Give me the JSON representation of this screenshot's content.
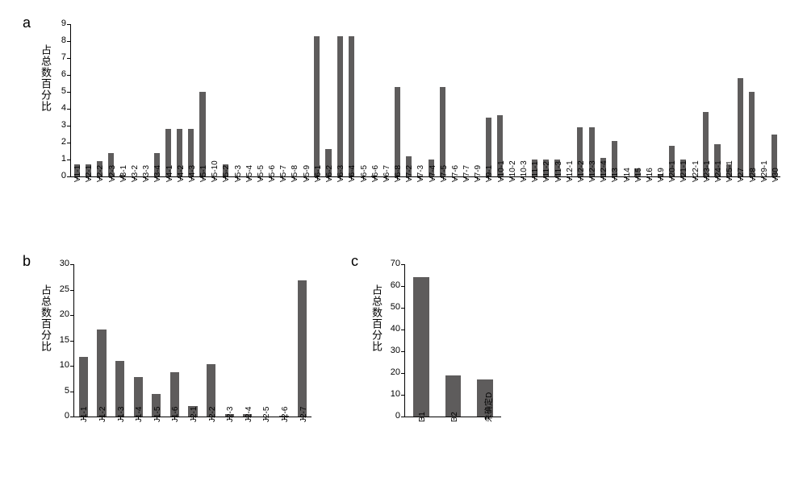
{
  "bar_color": "#5e5c5c",
  "background_color": "#ffffff",
  "axis_color": "#000000",
  "panel_a": {
    "label": "a",
    "y_axis_label": "占总数百分比",
    "label_fontsize": 18,
    "axis_label_fontsize": 13,
    "tick_fontsize": 11,
    "xtick_fontsize": 10,
    "ylim": [
      0,
      9
    ],
    "ytick_step": 1,
    "bar_width_ratio": 0.5,
    "categories": [
      "V1-1",
      "V2-1",
      "V2-2",
      "V2-3",
      "V3-1",
      "V3-2",
      "V3-3",
      "V3-4",
      "V4-1",
      "V4-2",
      "V4-3",
      "V5-1",
      "V5-10",
      "V5-2",
      "V5-3",
      "V5-4",
      "V5-5",
      "V5-6",
      "V5-7",
      "V5-8",
      "V5-9",
      "V6-1",
      "V6-2",
      "V6-3",
      "V6-4",
      "V6-5",
      "V6-6",
      "V6-7",
      "V6-8",
      "V7-2",
      "V7-3",
      "V7-4",
      "V7-5",
      "V7-6",
      "V7-7",
      "V7-9",
      "V9-1",
      "V10-1",
      "V10-2",
      "V10-3",
      "V11-1",
      "V11-2",
      "V11-3",
      "V12-1",
      "V12-2",
      "V12-3",
      "V12-4",
      "V13",
      "V14",
      "V15",
      "V16",
      "V19",
      "V20-1",
      "V21-1",
      "V22-1",
      "V23-1",
      "V24-1",
      "V25-1",
      "V27",
      "V28",
      "V29-1",
      "V30"
    ],
    "values": [
      0.7,
      0.7,
      0.9,
      1.4,
      0.1,
      0,
      0,
      1.4,
      2.8,
      2.8,
      2.8,
      5.0,
      0,
      0.7,
      0,
      0,
      0,
      0,
      0,
      0,
      0,
      8.3,
      1.6,
      8.3,
      8.3,
      0,
      0.05,
      0,
      5.3,
      1.2,
      0.05,
      1.0,
      5.3,
      0,
      0,
      0,
      3.5,
      3.6,
      0,
      0,
      1.0,
      1.0,
      1.0,
      0,
      2.9,
      2.9,
      1.1,
      2.1,
      0,
      0.5,
      0,
      0.1,
      1.8,
      1.0,
      0,
      3.8,
      1.9,
      0.7,
      5.8,
      5.0,
      0,
      2.5
    ]
  },
  "panel_b": {
    "label": "b",
    "y_axis_label": "占总数百分比",
    "label_fontsize": 18,
    "axis_label_fontsize": 13,
    "tick_fontsize": 11,
    "xtick_fontsize": 10,
    "ylim": [
      0,
      30
    ],
    "ytick_step": 5,
    "bar_width_ratio": 0.5,
    "categories": [
      "J1-1",
      "J1-2",
      "J1-3",
      "J1-4",
      "J1-5",
      "J1-6",
      "J2-1",
      "J2-2",
      "J2-3",
      "J2-4",
      "J2-5",
      "J2-6",
      "J2-7"
    ],
    "values": [
      11.8,
      17.2,
      11.0,
      7.8,
      4.5,
      8.7,
      2.0,
      10.3,
      0.5,
      0.4,
      0,
      0.1,
      26.8
    ]
  },
  "panel_c": {
    "label": "c",
    "y_axis_label": "占总数百分比",
    "label_fontsize": 18,
    "axis_label_fontsize": 13,
    "tick_fontsize": 11,
    "xtick_fontsize": 10,
    "ylim": [
      0,
      70
    ],
    "ytick_step": 10,
    "bar_width_ratio": 0.5,
    "categories": [
      "D1",
      "D2",
      "未确定D"
    ],
    "values": [
      64,
      19,
      17
    ]
  }
}
